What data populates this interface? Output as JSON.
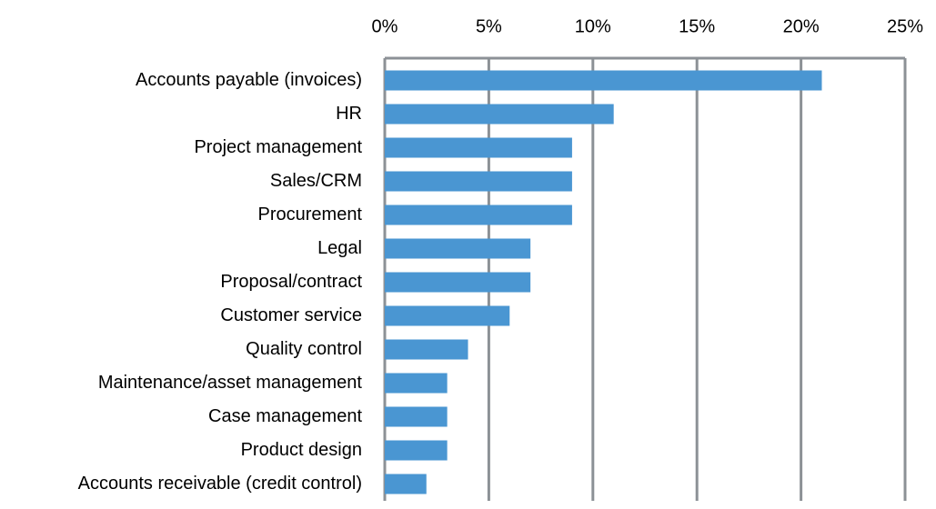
{
  "chart_data": {
    "type": "bar",
    "orientation": "horizontal",
    "categories": [
      "Accounts payable (invoices)",
      "HR",
      "Project management",
      "Sales/CRM",
      "Procurement",
      "Legal",
      "Proposal/contract",
      "Customer service",
      "Quality control",
      "Maintenance/asset management",
      "Case management",
      "Product design",
      "Accounts receivable (credit control)"
    ],
    "values": [
      21,
      11,
      9,
      9,
      9,
      7,
      7,
      6,
      4,
      3,
      3,
      3,
      2
    ],
    "color": "#4a96d2",
    "xlim": [
      0,
      25
    ],
    "xticks": [
      {
        "value": 0,
        "label": "0%"
      },
      {
        "value": 5,
        "label": "5%"
      },
      {
        "value": 10,
        "label": "10%"
      },
      {
        "value": 15,
        "label": "15%"
      },
      {
        "value": 20,
        "label": "20%"
      },
      {
        "value": 25,
        "label": "25%"
      }
    ],
    "grid": true
  }
}
